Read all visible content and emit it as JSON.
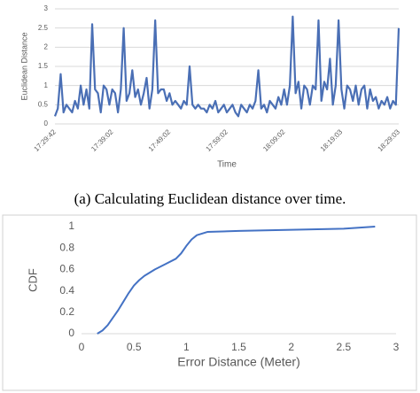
{
  "caption": "(a) Calculating Euclidean distance over time.",
  "chart_data": [
    {
      "type": "line",
      "ylabel": "Euclidean Distance",
      "xlabel": "Time",
      "categories": [
        "17:29:42",
        null,
        null,
        null,
        null,
        null,
        null,
        null,
        null,
        null,
        null,
        null,
        null,
        null,
        null,
        null,
        null,
        null,
        null,
        null,
        "17:39:02",
        null,
        null,
        null,
        null,
        null,
        null,
        null,
        null,
        null,
        null,
        null,
        null,
        null,
        null,
        null,
        null,
        null,
        null,
        null,
        "17:49:02",
        null,
        null,
        null,
        null,
        null,
        null,
        null,
        null,
        null,
        null,
        null,
        null,
        null,
        null,
        null,
        null,
        null,
        null,
        null,
        "17:59:02",
        null,
        null,
        null,
        null,
        null,
        null,
        null,
        null,
        null,
        null,
        null,
        null,
        null,
        null,
        null,
        null,
        null,
        null,
        null,
        "18:09:02",
        null,
        null,
        null,
        null,
        null,
        null,
        null,
        null,
        null,
        null,
        null,
        null,
        null,
        null,
        null,
        null,
        null,
        null,
        null,
        "18:19:03",
        null,
        null,
        null,
        null,
        null,
        null,
        null,
        null,
        null,
        null,
        null,
        null,
        null,
        null,
        null,
        null,
        null,
        null,
        null,
        "18:29:03"
      ],
      "values": [
        0.2,
        0.4,
        1.3,
        0.3,
        0.5,
        0.4,
        0.3,
        0.6,
        0.4,
        1.0,
        0.5,
        0.9,
        0.4,
        2.6,
        0.9,
        0.8,
        0.3,
        1.0,
        0.9,
        0.5,
        0.9,
        0.8,
        0.3,
        0.9,
        2.5,
        0.6,
        0.8,
        1.4,
        0.7,
        0.9,
        0.5,
        0.8,
        1.2,
        0.4,
        0.9,
        2.7,
        0.8,
        0.9,
        0.9,
        0.6,
        0.8,
        0.5,
        0.6,
        0.5,
        0.4,
        0.6,
        0.5,
        1.5,
        0.5,
        0.4,
        0.5,
        0.4,
        0.4,
        0.3,
        0.5,
        0.4,
        0.6,
        0.3,
        0.4,
        0.5,
        0.3,
        0.4,
        0.5,
        0.3,
        0.2,
        0.5,
        0.4,
        0.3,
        0.5,
        0.4,
        0.6,
        1.4,
        0.4,
        0.5,
        0.3,
        0.6,
        0.5,
        0.4,
        0.7,
        0.5,
        0.9,
        0.5,
        1.0,
        2.8,
        0.8,
        1.1,
        0.4,
        1.0,
        0.9,
        0.5,
        1.0,
        0.9,
        2.7,
        0.6,
        1.1,
        0.9,
        1.7,
        0.5,
        1.0,
        2.7,
        0.9,
        0.4,
        1.0,
        0.9,
        0.6,
        1.0,
        0.5,
        0.9,
        1.0,
        0.4,
        0.9,
        0.6,
        0.7,
        0.4,
        0.6,
        0.5,
        0.7,
        0.4,
        0.6,
        0.5,
        2.5
      ],
      "color": "#4a6fb5",
      "ylim": [
        0,
        3
      ],
      "yticks": [
        0,
        0.5,
        1,
        1.5,
        2,
        2.5,
        3
      ],
      "grid": true
    },
    {
      "type": "line",
      "ylabel": "CDF",
      "xlabel": "Error Distance (Meter)",
      "x": [
        0.15,
        0.2,
        0.25,
        0.3,
        0.35,
        0.4,
        0.45,
        0.5,
        0.55,
        0.6,
        0.7,
        0.8,
        0.9,
        0.95,
        1.0,
        1.05,
        1.1,
        1.2,
        1.5,
        2.0,
        2.5,
        2.8
      ],
      "values": [
        0,
        0.03,
        0.08,
        0.15,
        0.22,
        0.3,
        0.38,
        0.45,
        0.5,
        0.54,
        0.6,
        0.65,
        0.7,
        0.75,
        0.82,
        0.88,
        0.92,
        0.95,
        0.96,
        0.97,
        0.98,
        1.0
      ],
      "color": "#4472c4",
      "xlim": [
        0,
        3
      ],
      "xticks": [
        0,
        0.5,
        1,
        1.5,
        2,
        2.5,
        3
      ],
      "ylim": [
        0,
        1
      ],
      "yticks": [
        0,
        0.2,
        0.4,
        0.6,
        0.8,
        1
      ],
      "grid": false
    }
  ]
}
